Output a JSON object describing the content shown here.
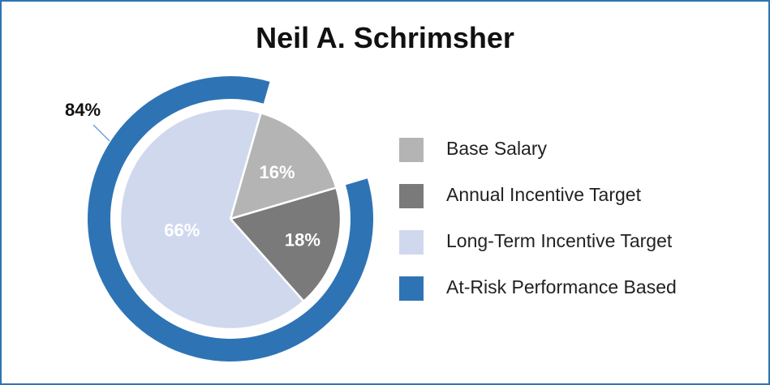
{
  "chart_data": {
    "type": "pie",
    "title": "Neil A. Schrimsher",
    "slices": [
      {
        "name": "Base Salary",
        "value": 16,
        "label": "16%",
        "color": "#b4b4b4"
      },
      {
        "name": "Annual Incentive Target",
        "value": 18,
        "label": "18%",
        "color": "#7a7a7a"
      },
      {
        "name": "Long-Term Incentive Target",
        "value": 66,
        "label": "66%",
        "color": "#d0d8ee"
      }
    ],
    "outer_ring": {
      "name": "At-Risk Performance Based",
      "value": 84,
      "label": "84%",
      "color": "#2e74b5"
    },
    "legend": [
      {
        "label": "Base Salary",
        "color": "#b4b4b4"
      },
      {
        "label": "Annual Incentive Target",
        "color": "#7a7a7a"
      },
      {
        "label": "Long-Term Incentive Target",
        "color": "#d0d8ee"
      },
      {
        "label": "At-Risk Performance Based",
        "color": "#2e74b5"
      }
    ],
    "legend_position": "right",
    "border_color": "#2e74b5"
  }
}
